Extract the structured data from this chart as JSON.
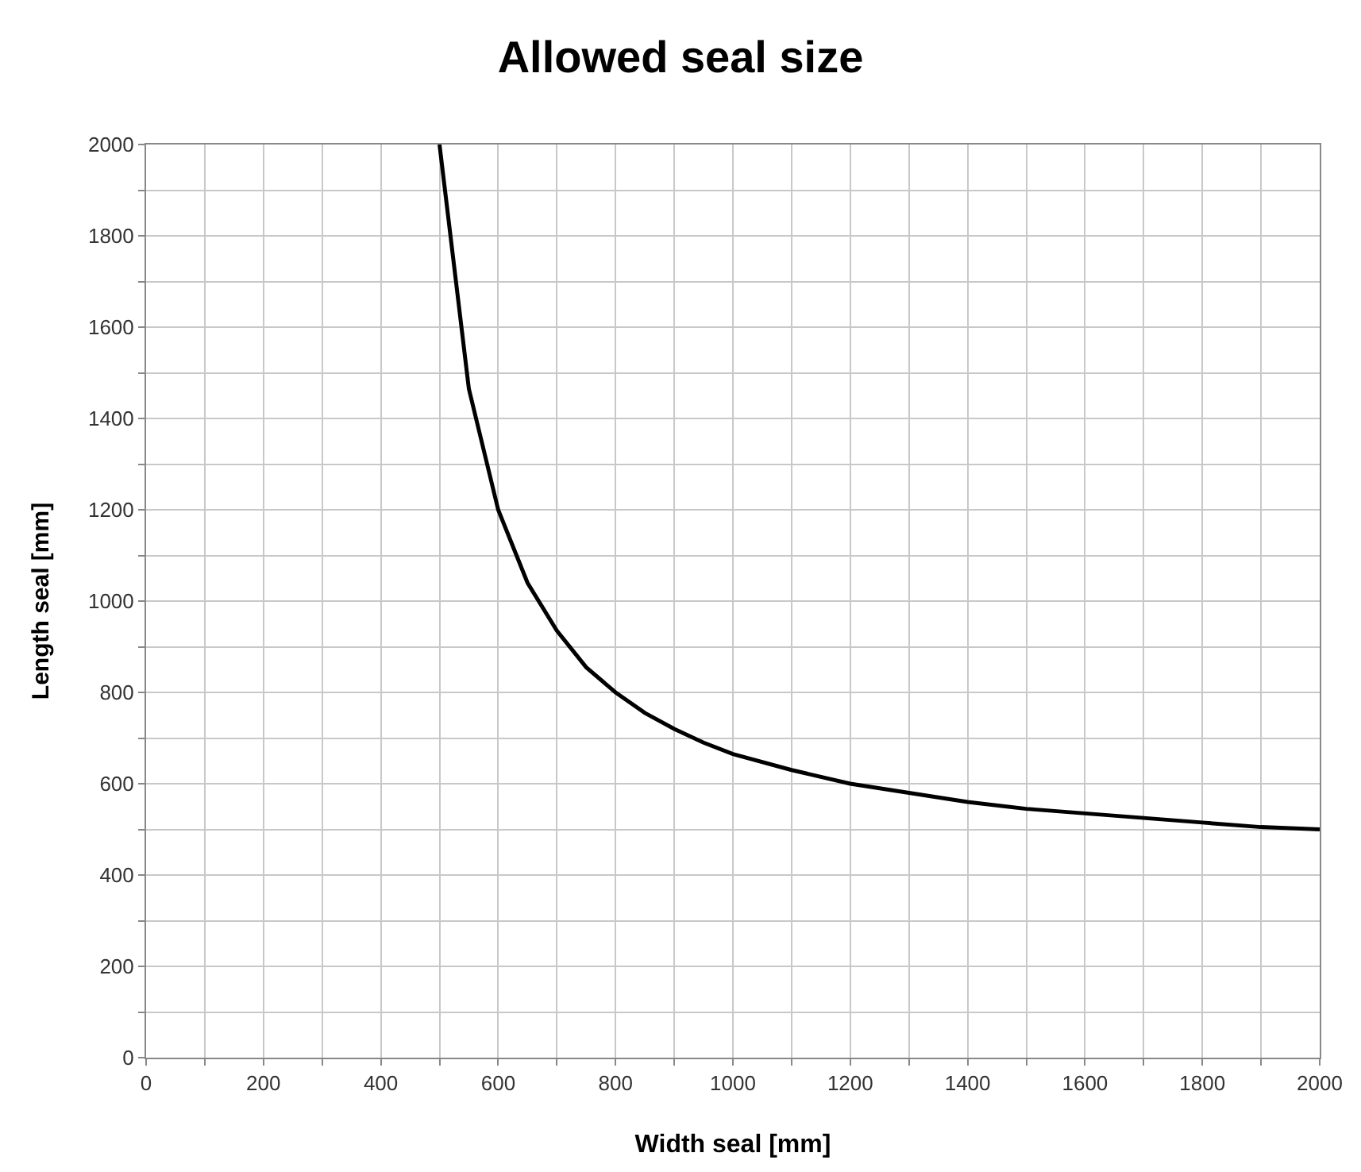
{
  "chart_data": {
    "type": "line",
    "title": "Allowed seal size",
    "xlabel": "Width seal [mm]",
    "ylabel": "Length seal [mm]",
    "x": [
      500,
      550,
      600,
      650,
      700,
      750,
      800,
      850,
      900,
      950,
      1000,
      1100,
      1200,
      1300,
      1400,
      1500,
      1600,
      1700,
      1800,
      1900,
      2000
    ],
    "series": [
      {
        "color": "#000000",
        "values": [
          2000,
          1465,
          1200,
          1040,
          935,
          855,
          800,
          755,
          720,
          690,
          665,
          630,
          600,
          580,
          560,
          545,
          535,
          525,
          515,
          505,
          500
        ]
      }
    ],
    "xlim": [
      0,
      2000
    ],
    "ylim": [
      0,
      2000
    ],
    "xticks": [
      0,
      {
        "value": 100,
        "label": null
      },
      200,
      {
        "value": 300,
        "label": null
      },
      400,
      {
        "value": 500,
        "label": null
      },
      600,
      {
        "value": 700,
        "label": null
      },
      800,
      {
        "value": 900,
        "label": null
      },
      1000,
      {
        "value": 1100,
        "label": null
      },
      1200,
      {
        "value": 1300,
        "label": null
      },
      1400,
      {
        "value": 1500,
        "label": null
      },
      1600,
      {
        "value": 1700,
        "label": null
      },
      1800,
      {
        "value": 1900,
        "label": null
      },
      2000
    ],
    "yticks": [
      0,
      {
        "value": 100,
        "label": null
      },
      200,
      {
        "value": 300,
        "label": null
      },
      400,
      {
        "value": 500,
        "label": null
      },
      600,
      {
        "value": 700,
        "label": null
      },
      800,
      {
        "value": 900,
        "label": null
      },
      1000,
      {
        "value": 1100,
        "label": null
      },
      1200,
      {
        "value": 1300,
        "label": null
      },
      1400,
      {
        "value": 1500,
        "label": null
      },
      1600,
      {
        "value": 1700,
        "label": null
      },
      1800,
      {
        "value": 1900,
        "label": null
      },
      2000
    ],
    "grid": true,
    "marker": "none",
    "line_style": "solid"
  }
}
